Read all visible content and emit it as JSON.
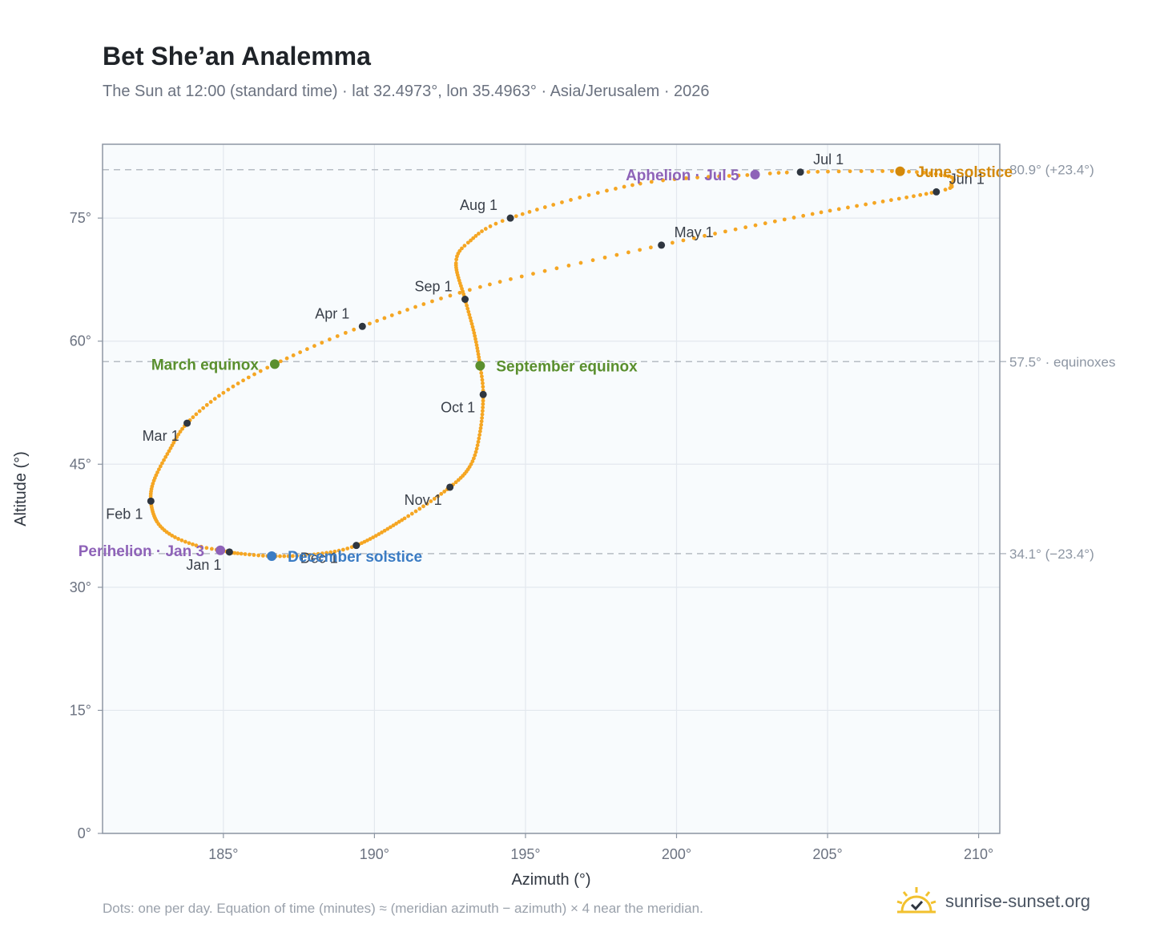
{
  "title": "Bet She’an Analemma",
  "subtitle": "The Sun at 12:00 (standard time) · lat 32.4973°, lon 35.4963° · Asia/Jerusalem · 2026",
  "footnote": "Dots: one per day. Equation of time (minutes) ≈ (meridian azimuth − azimuth) × 4 near the meridian.",
  "brand": {
    "name": "sunrise-sunset.org",
    "logo_icon": "sun-check-icon"
  },
  "colors": {
    "path": "#f5a623",
    "month_marker": "#2f3640",
    "equinox": "#5a8f2e",
    "june_solstice": "#d4890a",
    "december_solstice": "#3b7cc4",
    "apsis": "#8e62b8",
    "reference_line": "#b6bcc4",
    "plot_background": "#f8fbfd",
    "grid": "#e3e8ee"
  },
  "chart_data": {
    "type": "scatter",
    "title": "Bet She’an Analemma",
    "xlabel": "Azimuth (°)",
    "ylabel": "Altitude (°)",
    "xlim": [
      181,
      210.7
    ],
    "ylim": [
      0,
      84
    ],
    "grid": true,
    "x_ticks": [
      185,
      190,
      195,
      200,
      205,
      210
    ],
    "x_tick_labels": [
      "185°",
      "190°",
      "195°",
      "200°",
      "205°",
      "210°"
    ],
    "y_ticks": [
      0,
      15,
      30,
      45,
      60,
      75
    ],
    "y_tick_labels": [
      "0°",
      "15°",
      "30°",
      "45°",
      "60°",
      "75°"
    ],
    "daily_path_anchors": [
      {
        "day": 1,
        "az": 185.2,
        "alt": 34.3
      },
      {
        "day": 3,
        "az": 184.9,
        "alt": 34.5
      },
      {
        "day": 8,
        "az": 184.1,
        "alt": 35.1
      },
      {
        "day": 15,
        "az": 183.3,
        "alt": 36.3
      },
      {
        "day": 22,
        "az": 182.8,
        "alt": 38.0
      },
      {
        "day": 32,
        "az": 182.6,
        "alt": 40.5
      },
      {
        "day": 40,
        "az": 182.7,
        "alt": 43.0
      },
      {
        "day": 50,
        "az": 183.2,
        "alt": 46.6
      },
      {
        "day": 60,
        "az": 183.8,
        "alt": 50.0
      },
      {
        "day": 70,
        "az": 185.0,
        "alt": 53.7
      },
      {
        "day": 79,
        "az": 186.7,
        "alt": 57.2
      },
      {
        "day": 91,
        "az": 189.6,
        "alt": 61.8
      },
      {
        "day": 105,
        "az": 193.5,
        "alt": 66.6
      },
      {
        "day": 121,
        "az": 199.5,
        "alt": 71.7
      },
      {
        "day": 136,
        "az": 204.5,
        "alt": 75.5
      },
      {
        "day": 152,
        "az": 208.6,
        "alt": 78.2
      },
      {
        "day": 158,
        "az": 209.1,
        "alt": 79.2
      },
      {
        "day": 164,
        "az": 209.0,
        "alt": 80.1
      },
      {
        "day": 172,
        "az": 207.4,
        "alt": 80.7
      },
      {
        "day": 182,
        "az": 204.1,
        "alt": 80.6
      },
      {
        "day": 186,
        "az": 202.6,
        "alt": 80.3
      },
      {
        "day": 197,
        "az": 198.8,
        "alt": 79.2
      },
      {
        "day": 213,
        "az": 194.5,
        "alt": 75.0
      },
      {
        "day": 223,
        "az": 193.1,
        "alt": 72.0
      },
      {
        "day": 230,
        "az": 192.7,
        "alt": 69.5
      },
      {
        "day": 244,
        "az": 193.0,
        "alt": 65.1
      },
      {
        "day": 255,
        "az": 193.3,
        "alt": 61.0
      },
      {
        "day": 266,
        "az": 193.5,
        "alt": 57.0
      },
      {
        "day": 274,
        "az": 193.6,
        "alt": 53.5
      },
      {
        "day": 285,
        "az": 193.5,
        "alt": 49.0
      },
      {
        "day": 295,
        "az": 193.2,
        "alt": 45.0
      },
      {
        "day": 305,
        "az": 192.5,
        "alt": 42.2
      },
      {
        "day": 318,
        "az": 191.0,
        "alt": 38.4
      },
      {
        "day": 335,
        "az": 189.4,
        "alt": 35.1
      },
      {
        "day": 345,
        "az": 188.0,
        "alt": 34.0
      },
      {
        "day": 355,
        "az": 186.6,
        "alt": 33.8
      },
      {
        "day": 365,
        "az": 185.3,
        "alt": 34.2
      }
    ],
    "month_markers": [
      {
        "label": "Jan 1",
        "az": 185.2,
        "alt": 34.3,
        "label_pos": "below-left"
      },
      {
        "label": "Feb 1",
        "az": 182.6,
        "alt": 40.5,
        "label_pos": "below-left"
      },
      {
        "label": "Mar 1",
        "az": 183.8,
        "alt": 50.0,
        "label_pos": "below-left"
      },
      {
        "label": "Apr 1",
        "az": 189.6,
        "alt": 61.8,
        "label_pos": "above-left"
      },
      {
        "label": "May 1",
        "az": 199.5,
        "alt": 71.7,
        "label_pos": "above-right"
      },
      {
        "label": "Jun 1",
        "az": 208.6,
        "alt": 78.2,
        "label_pos": "above-right"
      },
      {
        "label": "Jul 1",
        "az": 204.1,
        "alt": 80.6,
        "label_pos": "above-right"
      },
      {
        "label": "Aug 1",
        "az": 194.5,
        "alt": 75.0,
        "label_pos": "above-left"
      },
      {
        "label": "Sep 1",
        "az": 193.0,
        "alt": 65.1,
        "label_pos": "above-left"
      },
      {
        "label": "Oct 1",
        "az": 193.6,
        "alt": 53.5,
        "label_pos": "below-left"
      },
      {
        "label": "Nov 1",
        "az": 192.5,
        "alt": 42.2,
        "label_pos": "below-left"
      },
      {
        "label": "Dec 1",
        "az": 189.4,
        "alt": 35.1,
        "label_pos": "below-right"
      }
    ],
    "events": [
      {
        "label": "March equinox",
        "az": 186.7,
        "alt": 57.2,
        "color_key": "equinox",
        "label_pos": "left"
      },
      {
        "label": "September equinox",
        "az": 193.5,
        "alt": 57.0,
        "color_key": "equinox",
        "label_pos": "right"
      },
      {
        "label": "June solstice",
        "az": 207.4,
        "alt": 80.7,
        "color_key": "june_solstice",
        "label_pos": "right"
      },
      {
        "label": "December solstice",
        "az": 186.6,
        "alt": 33.8,
        "color_key": "december_solstice",
        "label_pos": "right"
      },
      {
        "label": "Aphelion · Jul 5",
        "az": 202.6,
        "alt": 80.3,
        "color_key": "apsis",
        "label_pos": "left"
      },
      {
        "label": "Perihelion · Jan 3",
        "az": 184.9,
        "alt": 34.5,
        "color_key": "apsis",
        "label_pos": "left"
      }
    ],
    "reference_lines": [
      {
        "alt": 80.9,
        "label": "80.9° (+23.4°)"
      },
      {
        "alt": 57.5,
        "label": "57.5° · equinoxes"
      },
      {
        "alt": 34.1,
        "label": "34.1° (−23.4°)"
      }
    ]
  }
}
